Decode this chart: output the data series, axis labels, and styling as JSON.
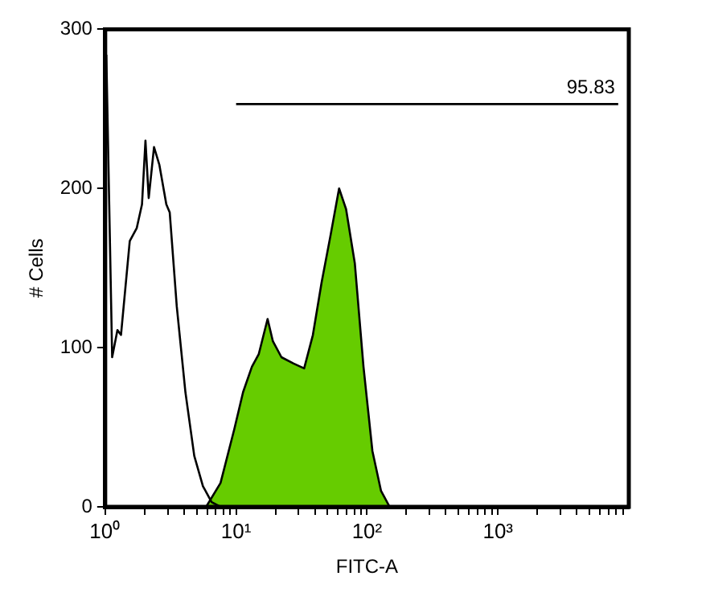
{
  "chart_data": {
    "type": "line",
    "xlabel": "FITC-A",
    "ylabel": "# Cells",
    "log": "x",
    "xlim": [
      1,
      10000
    ],
    "ylim": [
      0,
      300
    ],
    "xticks": [
      {
        "value": 1,
        "label": "10⁰"
      },
      {
        "value": 2,
        "label": null
      },
      {
        "value": 3,
        "label": null
      },
      {
        "value": 4,
        "label": null
      },
      {
        "value": 5,
        "label": null
      },
      {
        "value": 6,
        "label": null
      },
      {
        "value": 7,
        "label": null
      },
      {
        "value": 8,
        "label": null
      },
      {
        "value": 9,
        "label": null
      },
      {
        "value": 10,
        "label": "10¹"
      },
      {
        "value": 20,
        "label": null
      },
      {
        "value": 30,
        "label": null
      },
      {
        "value": 40,
        "label": null
      },
      {
        "value": 50,
        "label": null
      },
      {
        "value": 60,
        "label": null
      },
      {
        "value": 70,
        "label": null
      },
      {
        "value": 80,
        "label": null
      },
      {
        "value": 90,
        "label": null
      },
      {
        "value": 100,
        "label": "10²"
      },
      {
        "value": 200,
        "label": null
      },
      {
        "value": 300,
        "label": null
      },
      {
        "value": 400,
        "label": null
      },
      {
        "value": 500,
        "label": null
      },
      {
        "value": 600,
        "label": null
      },
      {
        "value": 700,
        "label": null
      },
      {
        "value": 800,
        "label": null
      },
      {
        "value": 900,
        "label": null
      },
      {
        "value": 1000,
        "label": "10³"
      },
      {
        "value": 2000,
        "label": null
      },
      {
        "value": 3000,
        "label": null
      },
      {
        "value": 4000,
        "label": null
      },
      {
        "value": 5000,
        "label": null
      },
      {
        "value": 6000,
        "label": null
      },
      {
        "value": 7000,
        "label": null
      },
      {
        "value": 8000,
        "label": null
      },
      {
        "value": 9000,
        "label": null
      }
    ],
    "yticks": [
      0,
      100,
      200,
      300
    ],
    "grid": false,
    "legend": false,
    "marker": "none",
    "series": [
      {
        "type": "line",
        "color": "#000000",
        "x": [
          1.02,
          1.13,
          1.24,
          1.32,
          1.54,
          1.74,
          1.91,
          2.03,
          2.15,
          2.36,
          2.59,
          2.93,
          3.11,
          3.52,
          4.1,
          4.79,
          5.58,
          6.5,
          7.6
        ],
        "values": [
          284,
          94,
          111,
          108,
          167,
          175,
          190,
          230,
          194,
          226,
          215,
          190,
          185,
          126,
          72,
          32,
          13,
          3,
          0
        ]
      },
      {
        "type": "line",
        "color": "#000000",
        "x": [
          10,
          8300
        ],
        "values": [
          253,
          253
        ]
      },
      {
        "type": "area",
        "color": "#66cc00",
        "x": [
          5.9,
          7.6,
          9.7,
          11.3,
          13.2,
          14.9,
          17.4,
          19.1,
          22.2,
          27.5,
          33.1,
          38.6,
          45,
          52.5,
          61.2,
          69.2,
          80.7,
          94,
          110,
          128,
          149
        ],
        "values": [
          0,
          15,
          49,
          72,
          88,
          96,
          118,
          104,
          94,
          90,
          87,
          108,
          141,
          170,
          200,
          187,
          153,
          88,
          35,
          10,
          0
        ]
      }
    ],
    "annotations": [
      {
        "text": "95.83",
        "x": 8300,
        "y": 253
      }
    ]
  }
}
